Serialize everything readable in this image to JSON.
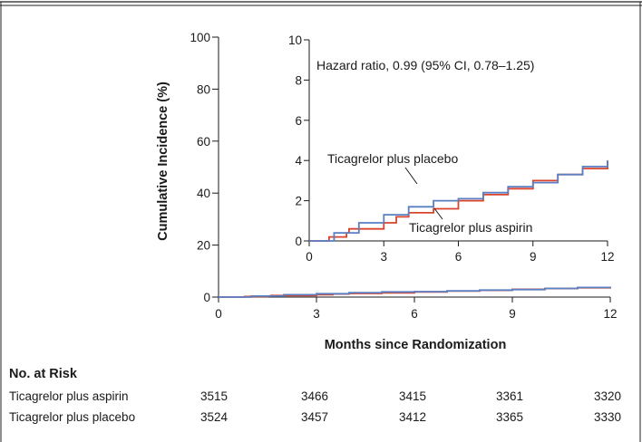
{
  "chart_data": {
    "type": "line",
    "xlabel": "Months since Randomization",
    "ylabel": "Cumulative Incidence (%)",
    "xlim": [
      0,
      12
    ],
    "ylim": [
      0,
      100
    ],
    "xticks": [
      0,
      3,
      6,
      9,
      12
    ],
    "yticks": [
      0,
      20,
      40,
      60,
      80,
      100
    ],
    "grid": false,
    "series": [
      {
        "name": "Ticagrelor plus aspirin",
        "color": "#d9432c",
        "x": [
          0,
          0.8,
          1.5,
          1.6,
          3.0,
          3.5,
          4.0,
          5.0,
          6.0,
          7.0,
          8.0,
          9.0,
          10.0,
          11.0,
          12.0
        ],
        "y": [
          0,
          0.2,
          0.4,
          0.6,
          0.9,
          1.2,
          1.4,
          1.6,
          2.0,
          2.3,
          2.6,
          3.0,
          3.3,
          3.6,
          4.0
        ]
      },
      {
        "name": "Ticagrelor plus placebo",
        "color": "#5a7fc2",
        "x": [
          0,
          1.0,
          2.0,
          3.0,
          4.0,
          5.0,
          6.0,
          7.0,
          8.0,
          9.0,
          10.0,
          11.0,
          12.0
        ],
        "y": [
          0,
          0.4,
          0.9,
          1.3,
          1.7,
          2.0,
          2.1,
          2.4,
          2.7,
          2.9,
          3.3,
          3.7,
          4.0
        ]
      }
    ],
    "inset": {
      "xlim": [
        0,
        12
      ],
      "ylim": [
        0,
        10
      ],
      "xticks": [
        0,
        3,
        6,
        9,
        12
      ],
      "yticks": [
        0,
        2,
        4,
        6,
        8,
        10
      ],
      "annotation": "Hazard ratio, 0.99 (95% CI, 0.78–1.25)",
      "labels": [
        {
          "text": "Ticagrelor plus placebo",
          "series": "Ticagrelor plus placebo"
        },
        {
          "text": "Ticagrelor plus aspirin",
          "series": "Ticagrelor plus aspirin"
        }
      ]
    }
  },
  "risk_table": {
    "title": "No. at Risk",
    "rows": [
      {
        "label": "Ticagrelor plus aspirin",
        "values": [
          "3515",
          "3466",
          "3415",
          "3361",
          "3320"
        ]
      },
      {
        "label": "Ticagrelor plus placebo",
        "values": [
          "3524",
          "3457",
          "3412",
          "3365",
          "3330"
        ]
      }
    ]
  }
}
